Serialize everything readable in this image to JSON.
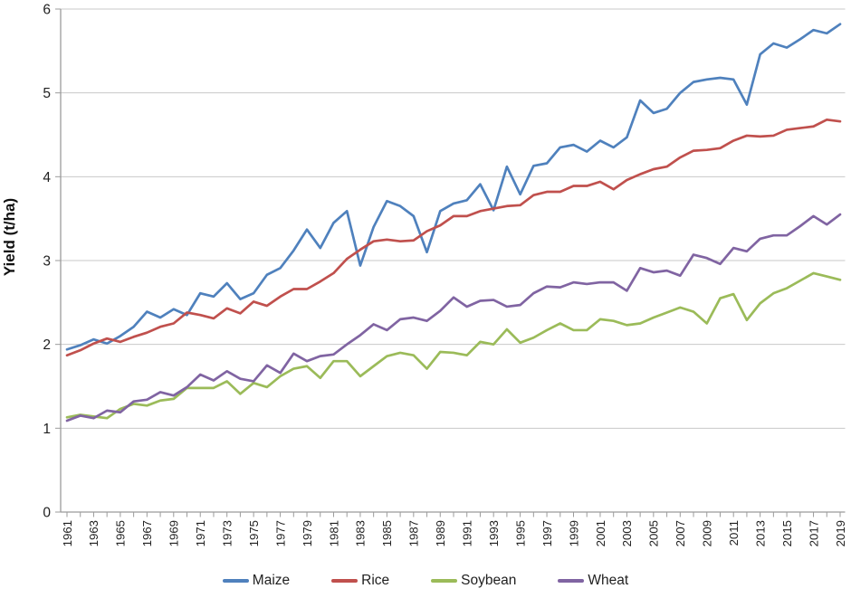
{
  "chart_data": {
    "type": "line",
    "title": "",
    "ylabel": "Yield (t/ha)",
    "xlabel": "",
    "ylim": [
      0,
      6
    ],
    "ytick_labels": [
      "0",
      "1",
      "2",
      "3",
      "4",
      "5",
      "6"
    ],
    "grid": "horizontal",
    "legend_position": "bottom-center",
    "colors": {
      "grid": "#C8C8C8",
      "axis": "#9B9B9B",
      "text": "#1F1F1F"
    },
    "x": [
      1961,
      1962,
      1963,
      1964,
      1965,
      1966,
      1967,
      1968,
      1969,
      1970,
      1971,
      1972,
      1973,
      1974,
      1975,
      1976,
      1977,
      1978,
      1979,
      1980,
      1981,
      1982,
      1983,
      1984,
      1985,
      1986,
      1987,
      1988,
      1989,
      1990,
      1991,
      1992,
      1993,
      1994,
      1995,
      1996,
      1997,
      1998,
      1999,
      2000,
      2001,
      2002,
      2003,
      2004,
      2005,
      2006,
      2007,
      2008,
      2009,
      2010,
      2011,
      2012,
      2013,
      2014,
      2015,
      2016,
      2017,
      2018,
      2019
    ],
    "xtick_label_years": [
      1961,
      1963,
      1965,
      1967,
      1969,
      1971,
      1973,
      1975,
      1977,
      1979,
      1981,
      1983,
      1985,
      1987,
      1989,
      1991,
      1993,
      1995,
      1997,
      1999,
      2001,
      2003,
      2005,
      2007,
      2009,
      2011,
      2013,
      2015,
      2017,
      2019
    ],
    "series": [
      {
        "name": "Maize",
        "color": "#4F81BD",
        "values": [
          1.94,
          1.99,
          2.06,
          2.01,
          2.1,
          2.21,
          2.39,
          2.32,
          2.42,
          2.35,
          2.61,
          2.57,
          2.73,
          2.54,
          2.61,
          2.83,
          2.91,
          3.12,
          3.37,
          3.15,
          3.45,
          3.59,
          2.94,
          3.4,
          3.71,
          3.65,
          3.53,
          3.1,
          3.59,
          3.68,
          3.72,
          3.91,
          3.6,
          4.12,
          3.79,
          4.13,
          4.16,
          4.35,
          4.38,
          4.3,
          4.43,
          4.35,
          4.47,
          4.91,
          4.76,
          4.81,
          5.0,
          5.13,
          5.16,
          5.18,
          5.16,
          4.86,
          5.46,
          5.59,
          5.54,
          5.64,
          5.75,
          5.71,
          5.82
        ]
      },
      {
        "name": "Rice",
        "color": "#C0504D",
        "values": [
          1.87,
          1.93,
          2.01,
          2.07,
          2.03,
          2.09,
          2.14,
          2.21,
          2.25,
          2.38,
          2.35,
          2.31,
          2.43,
          2.37,
          2.51,
          2.46,
          2.57,
          2.66,
          2.66,
          2.75,
          2.85,
          3.02,
          3.13,
          3.23,
          3.25,
          3.23,
          3.24,
          3.35,
          3.42,
          3.53,
          3.53,
          3.59,
          3.62,
          3.65,
          3.66,
          3.78,
          3.82,
          3.82,
          3.89,
          3.89,
          3.94,
          3.85,
          3.96,
          4.03,
          4.09,
          4.12,
          4.23,
          4.31,
          4.32,
          4.34,
          4.43,
          4.49,
          4.48,
          4.49,
          4.56,
          4.58,
          4.6,
          4.68,
          4.66
        ]
      },
      {
        "name": "Soybean",
        "color": "#9BBB59",
        "values": [
          1.13,
          1.16,
          1.14,
          1.12,
          1.23,
          1.29,
          1.27,
          1.33,
          1.35,
          1.48,
          1.48,
          1.48,
          1.56,
          1.41,
          1.54,
          1.49,
          1.62,
          1.71,
          1.74,
          1.6,
          1.8,
          1.8,
          1.62,
          1.74,
          1.86,
          1.9,
          1.87,
          1.71,
          1.91,
          1.9,
          1.87,
          2.03,
          2.0,
          2.18,
          2.02,
          2.08,
          2.17,
          2.25,
          2.17,
          2.17,
          2.3,
          2.28,
          2.23,
          2.25,
          2.32,
          2.38,
          2.44,
          2.39,
          2.25,
          2.55,
          2.6,
          2.29,
          2.49,
          2.61,
          2.67,
          2.76,
          2.85,
          2.81,
          2.77
        ]
      },
      {
        "name": "Wheat",
        "color": "#8064A2",
        "values": [
          1.09,
          1.15,
          1.12,
          1.21,
          1.19,
          1.32,
          1.34,
          1.43,
          1.39,
          1.49,
          1.64,
          1.57,
          1.68,
          1.59,
          1.56,
          1.75,
          1.66,
          1.89,
          1.8,
          1.86,
          1.88,
          2.0,
          2.11,
          2.24,
          2.17,
          2.3,
          2.32,
          2.28,
          2.4,
          2.56,
          2.45,
          2.52,
          2.53,
          2.45,
          2.47,
          2.61,
          2.69,
          2.68,
          2.74,
          2.72,
          2.74,
          2.74,
          2.64,
          2.91,
          2.86,
          2.88,
          2.82,
          3.07,
          3.03,
          2.96,
          3.15,
          3.11,
          3.26,
          3.3,
          3.3,
          3.41,
          3.53,
          3.43,
          3.55
        ]
      }
    ]
  }
}
